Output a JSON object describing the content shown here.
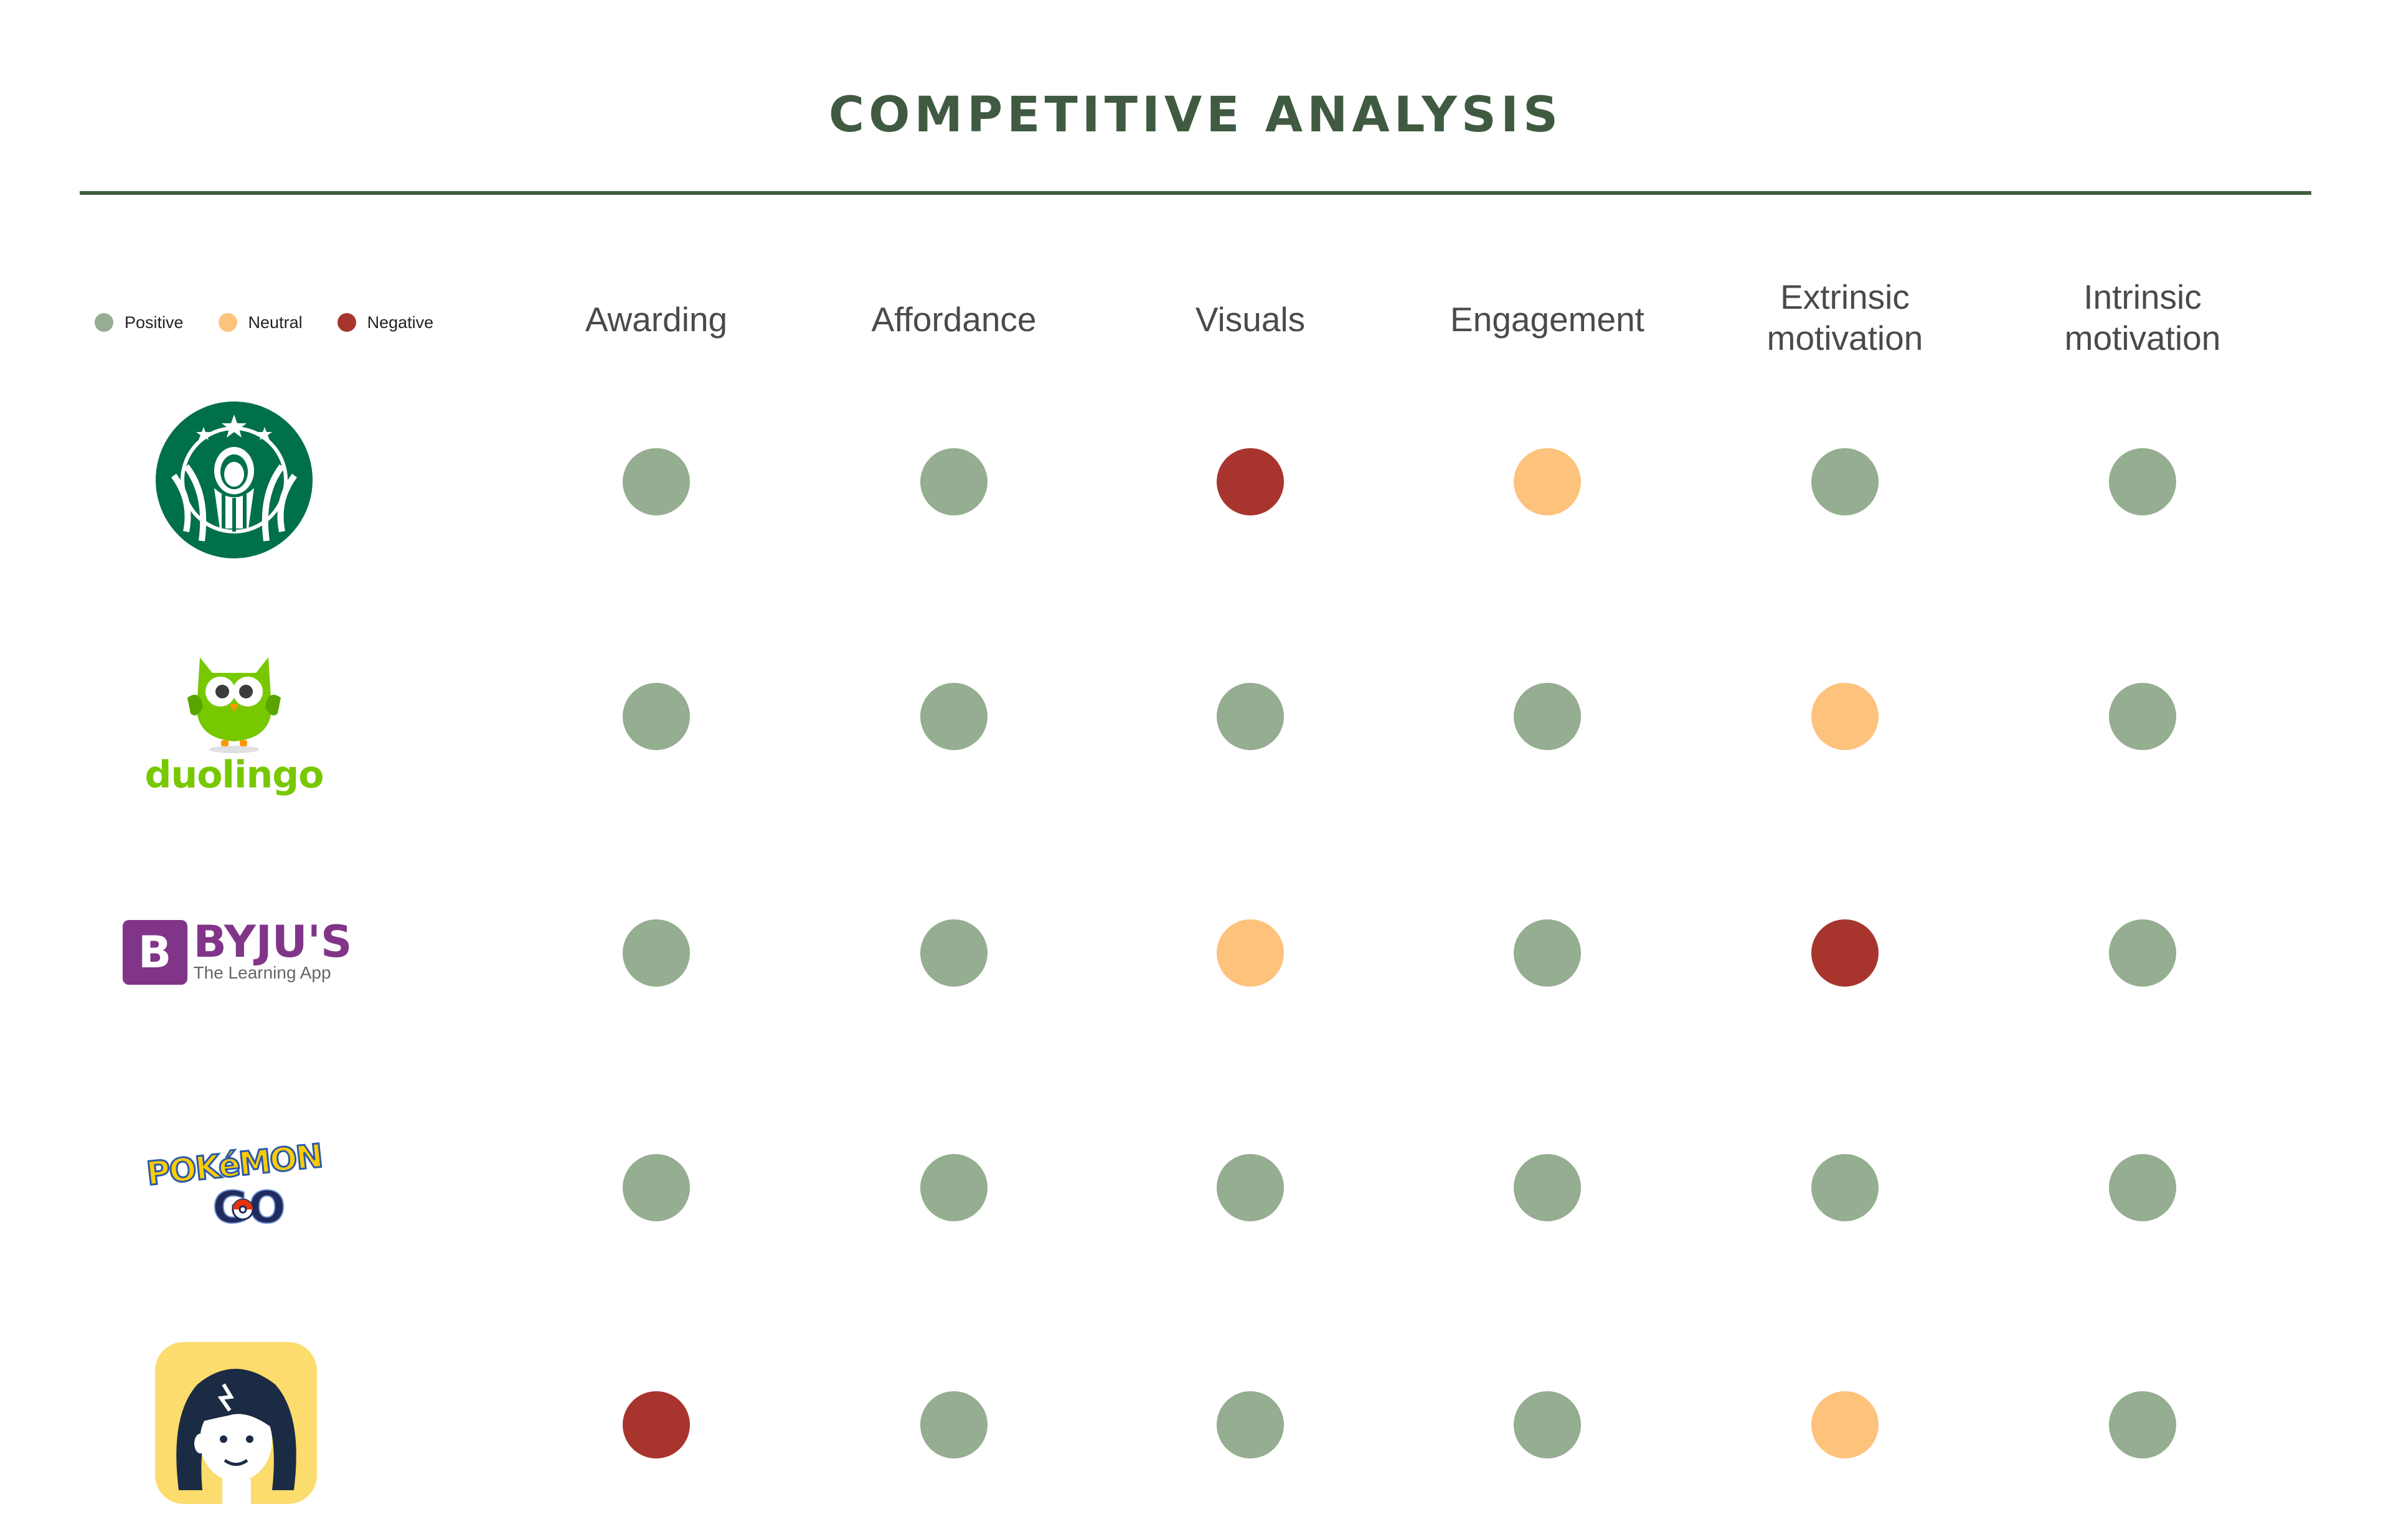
{
  "title": "COMPETITIVE ANALYSIS",
  "colors": {
    "positive": "#95ad90",
    "neutral": "#fdc27c",
    "negative": "#a7352e",
    "heading": "#3f5a40"
  },
  "legend": [
    {
      "label": "Positive",
      "status": "positive"
    },
    {
      "label": "Neutral",
      "status": "neutral"
    },
    {
      "label": "Negative",
      "status": "negative"
    }
  ],
  "columns": [
    {
      "lines": [
        "Awarding"
      ]
    },
    {
      "lines": [
        "Affordance"
      ]
    },
    {
      "lines": [
        "Visuals"
      ]
    },
    {
      "lines": [
        "Engagement"
      ]
    },
    {
      "lines": [
        "Extrinsic",
        "motivation"
      ]
    },
    {
      "lines": [
        "Intrinsic",
        "motivation"
      ]
    }
  ],
  "rows": [
    {
      "logo": "starbucks-logo",
      "ratings": [
        "positive",
        "positive",
        "negative",
        "neutral",
        "positive",
        "positive"
      ]
    },
    {
      "logo": "duolingo-logo",
      "logo_text": "duolingo",
      "ratings": [
        "positive",
        "positive",
        "positive",
        "positive",
        "neutral",
        "positive"
      ]
    },
    {
      "logo": "byjus-logo",
      "logo_text": "BYJU'S",
      "logo_sub": "The Learning App",
      "ratings": [
        "positive",
        "positive",
        "neutral",
        "positive",
        "negative",
        "positive"
      ]
    },
    {
      "logo": "pokemon-go-logo",
      "logo_text": "POKéMON",
      "logo_sub": "GO",
      "ratings": [
        "positive",
        "positive",
        "positive",
        "positive",
        "positive",
        "positive"
      ]
    },
    {
      "logo": "cartoon-girl-app-icon",
      "ratings": [
        "negative",
        "positive",
        "positive",
        "positive",
        "neutral",
        "positive"
      ]
    }
  ]
}
